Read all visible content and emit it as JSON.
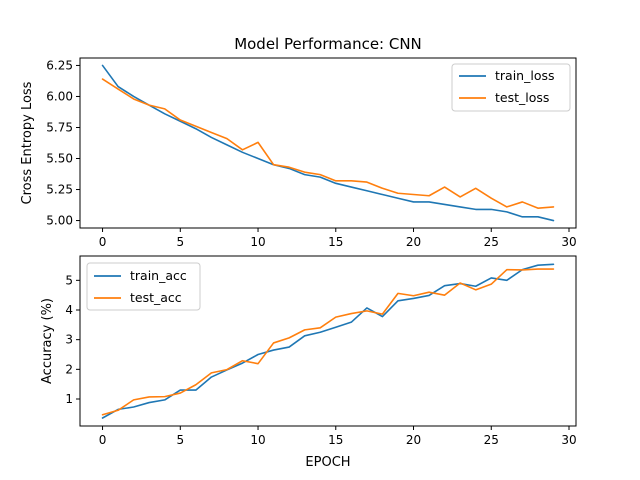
{
  "chart_data": [
    {
      "type": "line",
      "title": "Model Performance: CNN",
      "xlabel": "",
      "ylabel": "Cross Entropy Loss",
      "xlim": [
        -1.45,
        30.45
      ],
      "ylim": [
        4.94,
        6.31
      ],
      "xticks": [
        0,
        5,
        10,
        15,
        20,
        25,
        30
      ],
      "yticks": [
        5.0,
        5.25,
        5.5,
        5.75,
        6.0,
        6.25
      ],
      "ytick_labels": [
        "5.00",
        "5.25",
        "5.50",
        "5.75",
        "6.00",
        "6.25"
      ],
      "legend_position": "top-right",
      "x": [
        0,
        1,
        2,
        3,
        4,
        5,
        6,
        7,
        8,
        9,
        10,
        11,
        12,
        13,
        14,
        15,
        16,
        17,
        18,
        19,
        20,
        21,
        22,
        23,
        24,
        25,
        26,
        27,
        28,
        29
      ],
      "series": [
        {
          "name": "train_loss",
          "color": "#1f77b4",
          "values": [
            6.25,
            6.08,
            6.0,
            5.93,
            5.86,
            5.8,
            5.74,
            5.67,
            5.61,
            5.55,
            5.5,
            5.45,
            5.42,
            5.37,
            5.35,
            5.3,
            5.27,
            5.24,
            5.21,
            5.18,
            5.15,
            5.15,
            5.13,
            5.11,
            5.09,
            5.09,
            5.07,
            5.03,
            5.03,
            5.0
          ]
        },
        {
          "name": "test_loss",
          "color": "#ff7f0e",
          "values": [
            6.14,
            6.06,
            5.98,
            5.93,
            5.9,
            5.81,
            5.76,
            5.71,
            5.66,
            5.57,
            5.63,
            5.45,
            5.43,
            5.39,
            5.37,
            5.32,
            5.32,
            5.31,
            5.26,
            5.22,
            5.21,
            5.2,
            5.27,
            5.19,
            5.26,
            5.18,
            5.11,
            5.15,
            5.1,
            5.11
          ]
        }
      ]
    },
    {
      "type": "line",
      "title": "",
      "xlabel": "EPOCH",
      "ylabel": "Accuracy (%)",
      "xlim": [
        -1.45,
        30.45
      ],
      "ylim": [
        0.09,
        5.82
      ],
      "xticks": [
        0,
        5,
        10,
        15,
        20,
        25,
        30
      ],
      "yticks": [
        1,
        2,
        3,
        4,
        5
      ],
      "ytick_labels": [
        "1",
        "2",
        "3",
        "4",
        "5"
      ],
      "legend_position": "top-left",
      "x": [
        0,
        1,
        2,
        3,
        4,
        5,
        6,
        7,
        8,
        9,
        10,
        11,
        12,
        13,
        14,
        15,
        16,
        17,
        18,
        19,
        20,
        21,
        22,
        23,
        24,
        25,
        26,
        27,
        28,
        29
      ],
      "series": [
        {
          "name": "train_acc",
          "color": "#1f77b4",
          "values": [
            0.36,
            0.65,
            0.73,
            0.88,
            0.97,
            1.3,
            1.3,
            1.74,
            1.98,
            2.21,
            2.5,
            2.65,
            2.75,
            3.13,
            3.25,
            3.42,
            3.59,
            4.07,
            3.78,
            4.31,
            4.39,
            4.49,
            4.82,
            4.89,
            4.8,
            5.08,
            5.0,
            5.36,
            5.51,
            5.54
          ]
        },
        {
          "name": "test_acc",
          "color": "#ff7f0e",
          "values": [
            0.47,
            0.62,
            0.97,
            1.07,
            1.08,
            1.2,
            1.48,
            1.88,
            1.99,
            2.29,
            2.19,
            2.89,
            3.06,
            3.33,
            3.4,
            3.76,
            3.88,
            3.97,
            3.86,
            4.56,
            4.48,
            4.6,
            4.5,
            4.91,
            4.68,
            4.87,
            5.36,
            5.35,
            5.38,
            5.38
          ]
        }
      ]
    }
  ]
}
